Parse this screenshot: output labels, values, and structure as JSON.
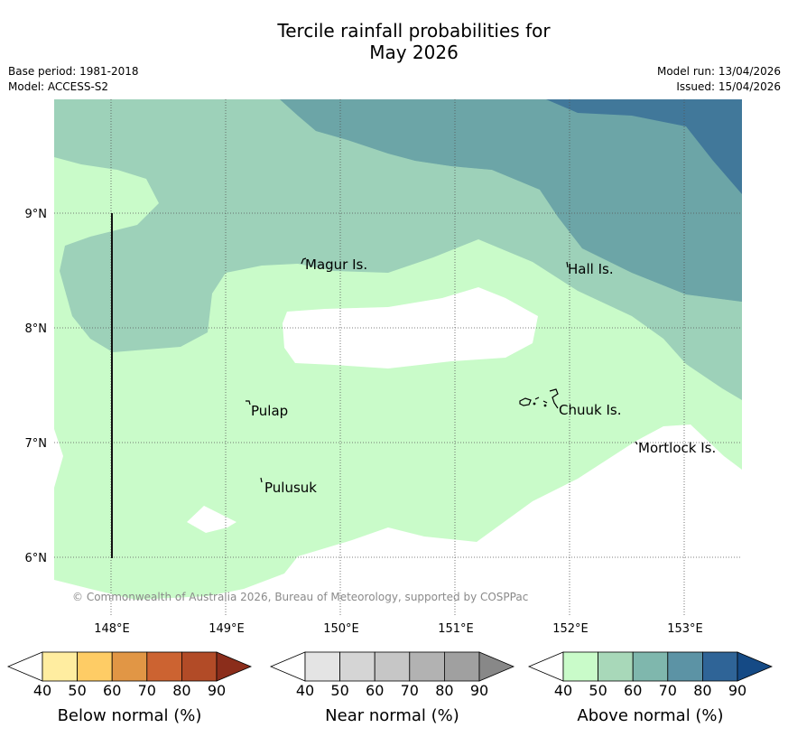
{
  "title": {
    "line1": "Tercile rainfall probabilities for",
    "line2": "May 2026"
  },
  "meta": {
    "base_period": "Base period: 1981-2018",
    "model": "Model: ACCESS-S2",
    "model_run": "Model run: 13/04/2026",
    "issued": "Issued: 15/04/2026"
  },
  "map": {
    "lat_labels": [
      "9°N",
      "8°N",
      "7°N",
      "6°N"
    ],
    "lon_labels": [
      "148°E",
      "149°E",
      "150°E",
      "151°E",
      "152°E",
      "153°E"
    ],
    "islands": [
      "Magur Is.",
      "Hall Is.",
      "Pulap",
      "Chuuk Is.",
      "Mortlock Is.",
      "Pulusuk"
    ],
    "copyright": "© Commonwealth of Australia 2026, Bureau of Meteorology, supported by COSPPac",
    "colors": {
      "above_40": "#c9fbc9",
      "above_50": "#9dd1b9",
      "above_60": "#7fb7ad",
      "above_70": "#6ca5a7",
      "above_80": "#41789a"
    }
  },
  "colorbars": [
    {
      "label": "Below normal (%)",
      "ticks": [
        "40",
        "50",
        "60",
        "70",
        "80",
        "90"
      ],
      "colors": [
        "#ffeda0",
        "#fecc65",
        "#e19645",
        "#cc6331",
        "#b24b27",
        "#8b2d1b"
      ]
    },
    {
      "label": "Near normal (%)",
      "ticks": [
        "40",
        "50",
        "60",
        "70",
        "80",
        "90"
      ],
      "colors": [
        "#e4e4e4",
        "#d5d5d5",
        "#c6c6c6",
        "#b2b2b2",
        "#a0a0a0",
        "#888888"
      ]
    },
    {
      "label": "Above normal (%)",
      "ticks": [
        "40",
        "50",
        "60",
        "70",
        "80",
        "90"
      ],
      "colors": [
        "#c9fbc9",
        "#a8d8b9",
        "#7fb7ad",
        "#5c93a5",
        "#2f6497",
        "#154a85"
      ]
    }
  ]
}
